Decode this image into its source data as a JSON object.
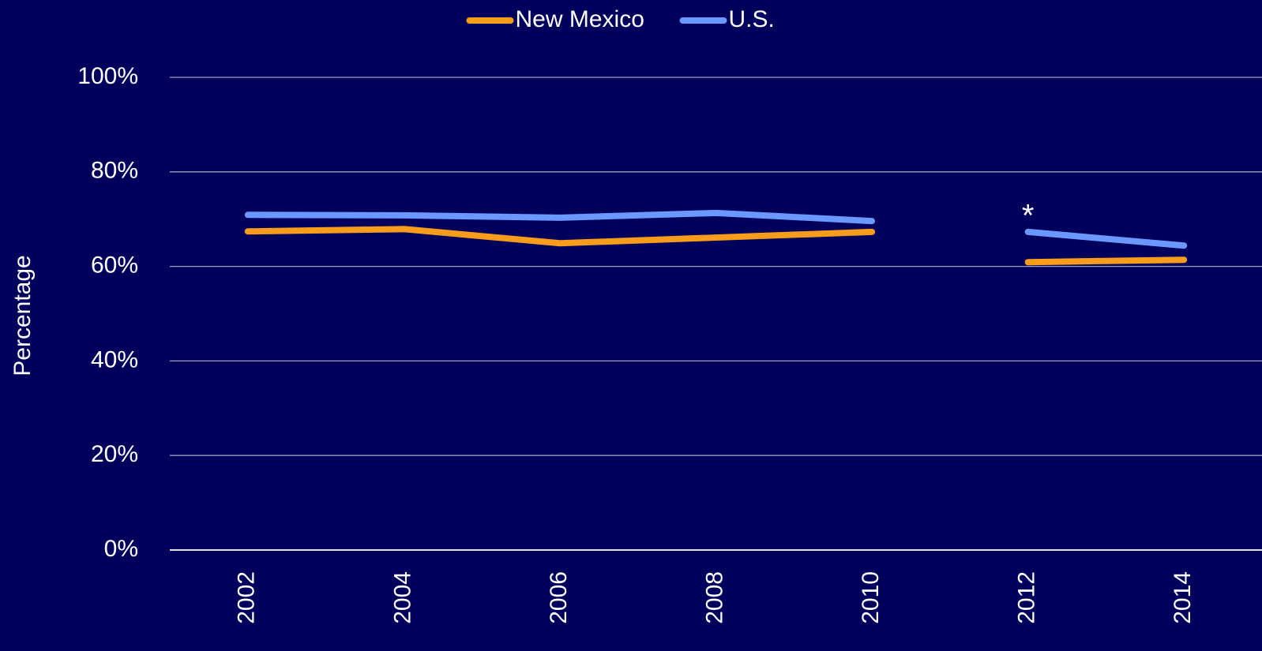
{
  "chart_data": {
    "type": "line",
    "y_label": "Percentage",
    "categories": [
      "2002",
      "2004",
      "2006",
      "2008",
      "2010",
      "2012",
      "2014"
    ],
    "series": [
      {
        "name": "New Mexico",
        "color": "#f89c1c",
        "values": [
          67.4,
          67.9,
          64.9,
          66.1,
          67.3,
          60.9,
          61.4
        ]
      },
      {
        "name": "U.S.",
        "color": "#6b98ff",
        "values": [
          70.9,
          70.8,
          70.3,
          71.3,
          69.6,
          67.3,
          64.4
        ]
      }
    ],
    "break_before": 5,
    "annotations": [
      {
        "text": "*",
        "at": 5,
        "series": 1
      }
    ],
    "ylim": [
      0,
      100
    ],
    "yticks": [
      {
        "value": 0,
        "label": "0%"
      },
      {
        "value": 20,
        "label": "20%"
      },
      {
        "value": 40,
        "label": "40%"
      },
      {
        "value": 60,
        "label": "60%"
      },
      {
        "value": 80,
        "label": "80%"
      },
      {
        "value": 100,
        "label": "100%"
      }
    ],
    "grid": true,
    "legend": "top"
  }
}
